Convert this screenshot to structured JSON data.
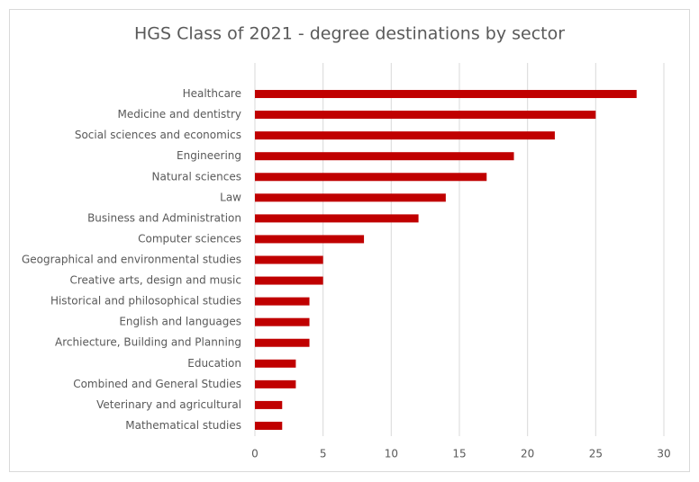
{
  "chart_data": {
    "type": "bar",
    "orientation": "horizontal",
    "title": "HGS Class of 2021 - degree destinations by sector",
    "categories": [
      "Healthcare",
      "Medicine and dentistry",
      "Social sciences and economics",
      "Engineering",
      "Natural sciences",
      "Law",
      "Business and Administration",
      "Computer sciences",
      "Geographical and environmental studies",
      "Creative arts, design and music",
      "Historical and philosophical studies",
      "English and languages",
      "Archiecture, Building and Planning",
      "Education",
      "Combined and General Studies",
      "Veterinary and agricultural",
      "Mathematical studies"
    ],
    "values": [
      28,
      25,
      22,
      19,
      17,
      14,
      12,
      8,
      5,
      5,
      4,
      4,
      4,
      3,
      3,
      2,
      2
    ],
    "color": "#c00000",
    "xlim": [
      0,
      30
    ],
    "xticks": [
      0,
      5,
      10,
      15,
      20,
      25,
      30
    ],
    "grid": true
  }
}
